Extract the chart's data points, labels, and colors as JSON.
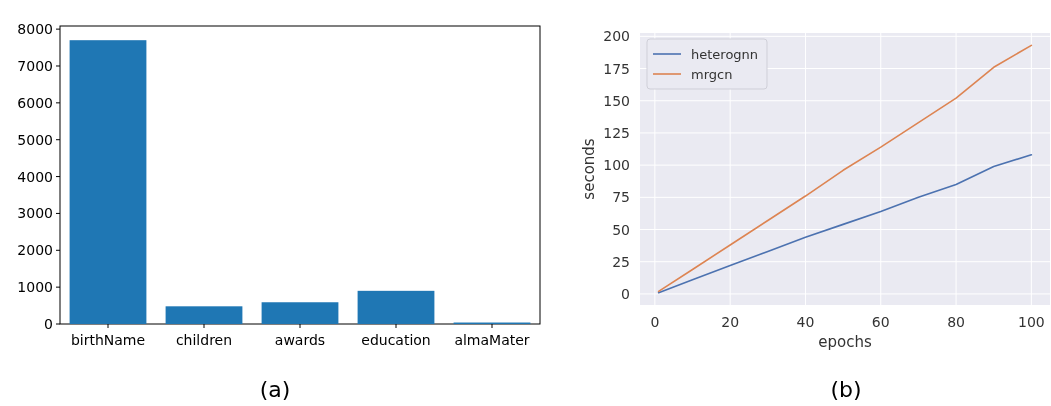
{
  "chart_data": [
    {
      "type": "bar",
      "categories": [
        "birthName",
        "children",
        "awards",
        "education",
        "almaMater"
      ],
      "values": [
        7700,
        480,
        590,
        900,
        40
      ],
      "color": "#1f77b4",
      "ylim": [
        0,
        8085
      ],
      "yticks": [
        0,
        1000,
        2000,
        3000,
        4000,
        5000,
        6000,
        7000,
        8000
      ],
      "grid": false,
      "annotations": [
        "(a)"
      ]
    },
    {
      "type": "line",
      "xlabel": "epochs",
      "ylabel": "seconds",
      "x": [
        1,
        10,
        20,
        30,
        40,
        50,
        60,
        70,
        80,
        90,
        100
      ],
      "xlim": [
        -3.95,
        104.95
      ],
      "xticks": [
        0,
        20,
        40,
        60,
        80,
        100
      ],
      "ylim": [
        -8.6,
        202.6
      ],
      "yticks": [
        0,
        25,
        50,
        75,
        100,
        125,
        150,
        175,
        200
      ],
      "grid": true,
      "legend": "top left",
      "annotations": [
        "(b)"
      ],
      "series": [
        {
          "name": "heterognn",
          "color": "#4c72b0",
          "values": [
            1,
            11,
            22,
            33,
            44,
            54,
            64,
            75,
            85,
            99,
            108
          ]
        },
        {
          "name": "mrgcn",
          "color": "#dd8452",
          "values": [
            2,
            19,
            38,
            57,
            76,
            96,
            114,
            133,
            152,
            176,
            193
          ]
        }
      ]
    }
  ]
}
